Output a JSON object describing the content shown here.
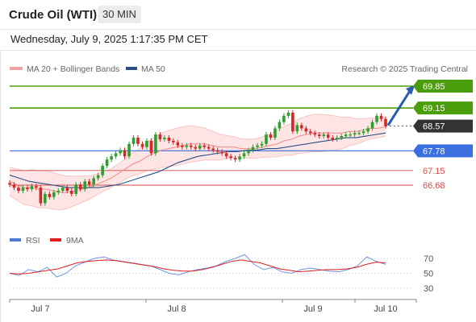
{
  "header": {
    "instrument": "Crude Oil (WTI)",
    "timeframe": "30 MIN",
    "datetime": "Wednesday, July 9, 2025 1:17:35 PM CET"
  },
  "legend": [
    {
      "label": "MA 20 + Bollinger Bands",
      "color": "#f4a09e"
    },
    {
      "label": "MA 50",
      "color": "#2c4f86"
    }
  ],
  "credit": "Research © 2025 Trading Central",
  "rsi_legend": [
    {
      "label": "RSI",
      "color": "#4c78d6"
    },
    {
      "label": "9MA",
      "color": "#e02020"
    }
  ],
  "colors": {
    "up": "#2d9f2d",
    "down": "#d62626",
    "resistance": "#4a9e0c",
    "support": "#3a6fe0",
    "target_support": "#d84a4a",
    "forecast_arrow": "#2a5db0",
    "current": "#333333"
  },
  "chart_data": {
    "type": "candlestick",
    "x_tick_labels": [
      "Jul 7",
      "Jul 8",
      "Jul 9",
      "Jul 10"
    ],
    "price_levels": [
      {
        "value": 69.85,
        "label": "69.85",
        "kind": "resistance"
      },
      {
        "value": 69.15,
        "label": "69.15",
        "kind": "resistance"
      },
      {
        "value": 68.57,
        "label": "68.57",
        "kind": "current"
      },
      {
        "value": 67.78,
        "label": "67.78",
        "kind": "pivot"
      },
      {
        "value": 67.15,
        "label": "67.15",
        "kind": "support"
      },
      {
        "value": 66.68,
        "label": "66.68",
        "kind": "support"
      }
    ],
    "close_series": [
      66.7,
      66.6,
      66.5,
      66.6,
      66.55,
      66.65,
      66.6,
      66.1,
      66.4,
      66.3,
      66.45,
      66.5,
      66.6,
      66.5,
      66.4,
      66.7,
      66.55,
      66.8,
      66.7,
      66.9,
      67.0,
      67.3,
      67.5,
      67.6,
      67.7,
      67.8,
      67.6,
      68.0,
      68.2,
      68.0,
      67.9,
      68.1,
      67.7,
      68.3,
      68.15,
      68.2,
      68.1,
      68.05,
      67.95,
      67.9,
      67.95,
      67.9,
      67.85,
      67.95,
      67.9,
      67.85,
      67.8,
      67.75,
      67.7,
      67.6,
      67.55,
      67.5,
      67.6,
      67.7,
      67.8,
      67.9,
      67.95,
      68.0,
      68.3,
      68.2,
      68.5,
      68.7,
      68.9,
      69.0,
      68.4,
      68.6,
      68.5,
      68.4,
      68.35,
      68.3,
      68.25,
      68.3,
      68.2,
      68.15,
      68.2,
      68.25,
      68.3,
      68.3,
      68.35,
      68.35,
      68.4,
      68.5,
      68.7,
      68.9,
      68.8,
      68.57
    ],
    "ma20": [
      66.8,
      66.7,
      66.6,
      66.6,
      66.55,
      66.55,
      66.5,
      66.45,
      66.45,
      66.5,
      66.55,
      66.6,
      66.7,
      66.8,
      66.9,
      67.05,
      67.2,
      67.35,
      67.45,
      67.6,
      67.7,
      67.8,
      67.85,
      67.9,
      67.95,
      68.0,
      68.0,
      68.0,
      67.95,
      67.9,
      67.9,
      67.9,
      67.85,
      67.85,
      67.85,
      67.9,
      67.95,
      68.0,
      68.1,
      68.15,
      68.25,
      68.3,
      68.35,
      68.35,
      68.35,
      68.35,
      68.35,
      68.4,
      68.4,
      68.45,
      68.5,
      68.5,
      68.55
    ],
    "ma50": [
      67.0,
      66.9,
      66.8,
      66.75,
      66.7,
      66.65,
      66.6,
      66.6,
      66.6,
      66.6,
      66.65,
      66.7,
      66.8,
      66.9,
      67.0,
      67.1,
      67.25,
      67.4,
      67.5,
      67.6,
      67.65,
      67.7,
      67.75,
      67.75,
      67.8,
      67.8,
      67.85,
      67.85,
      67.9,
      67.95,
      68.0,
      68.05,
      68.1,
      68.15,
      68.2,
      68.2,
      68.25,
      68.3,
      68.35
    ],
    "rsi": [
      50,
      47,
      55,
      52,
      58,
      45,
      50,
      60,
      65,
      70,
      72,
      68,
      66,
      64,
      62,
      60,
      55,
      50,
      48,
      52,
      55,
      57,
      60,
      66,
      70,
      75,
      62,
      55,
      58,
      52,
      50,
      55,
      57,
      55,
      53,
      52,
      55,
      60,
      72,
      66,
      62
    ],
    "rsi_ma": [
      50,
      49,
      50,
      52,
      54,
      56,
      60,
      64,
      66,
      67,
      68,
      67,
      65,
      63,
      61,
      59,
      56,
      54,
      53,
      53,
      55,
      58,
      62,
      66,
      68,
      66,
      64,
      60,
      56,
      54,
      52,
      53,
      54,
      55,
      55,
      56,
      58,
      62,
      65,
      64
    ],
    "rsi_levels": [
      70,
      50,
      30
    ]
  }
}
